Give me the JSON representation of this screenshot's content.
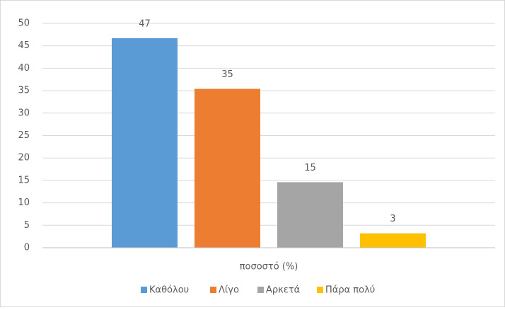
{
  "chart_data": {
    "type": "bar",
    "categories": [
      "ποσοστό (%)"
    ],
    "series": [
      {
        "name": "Καθόλου",
        "color": "#5b9bd5",
        "values": [
          46.7
        ],
        "value_labels": [
          "47"
        ]
      },
      {
        "name": "Λίγο",
        "color": "#ed7d31",
        "values": [
          35.4
        ],
        "value_labels": [
          "35"
        ]
      },
      {
        "name": "Αρκετά",
        "color": "#a5a5a5",
        "values": [
          14.6
        ],
        "value_labels": [
          "15"
        ]
      },
      {
        "name": "Πάρα πολύ",
        "color": "#ffc000",
        "values": [
          3.2
        ],
        "value_labels": [
          "3"
        ]
      }
    ],
    "ylim": [
      0,
      50
    ],
    "yticks": [
      0,
      5,
      10,
      15,
      20,
      25,
      30,
      35,
      40,
      45,
      50
    ],
    "grid": true,
    "legend": "bottom"
  }
}
